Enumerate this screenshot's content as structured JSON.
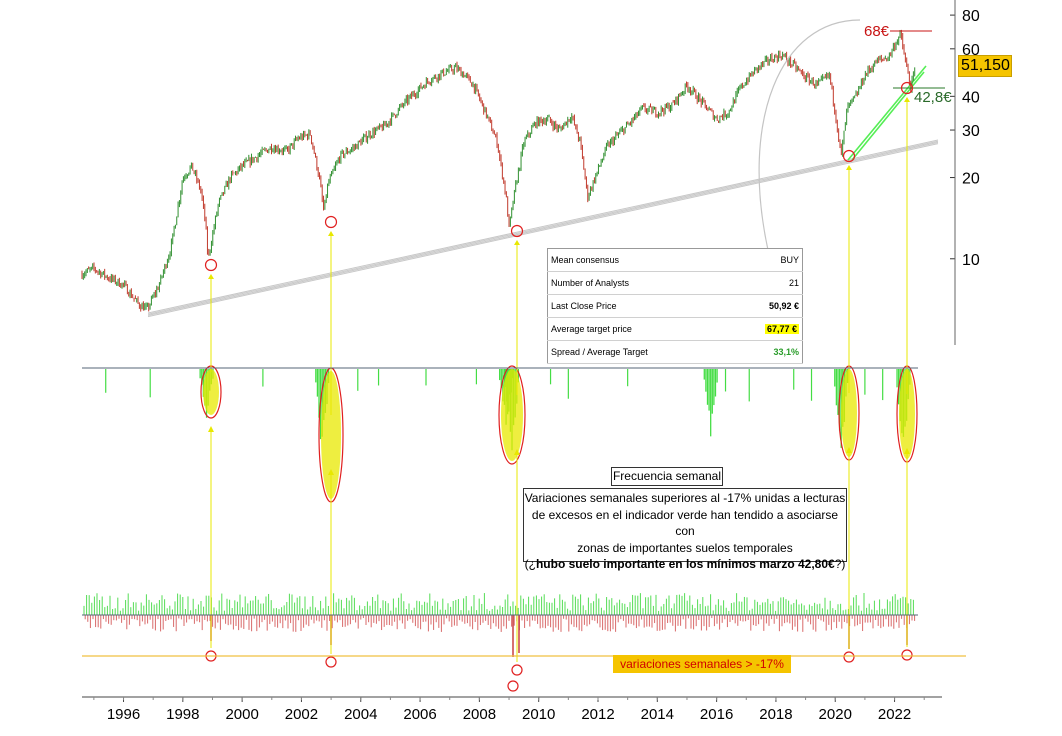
{
  "chart_data": [
    {
      "type": "line",
      "panel": "price",
      "scale": "log",
      "ylim": [
        5,
        85
      ],
      "yticks": [
        "10",
        "20",
        "30",
        "40",
        "60",
        "80"
      ],
      "xticks": [
        "1996",
        "1998",
        "2000",
        "2002",
        "2004",
        "2006",
        "2008",
        "2010",
        "2012",
        "2014",
        "2016",
        "2018",
        "2020",
        "2022"
      ],
      "series": [
        {
          "x": [
            1994.6,
            1995.0,
            1995.5,
            1996.0,
            1996.5,
            1996.8,
            1997.2,
            1997.6,
            1998.0,
            1998.3,
            1998.6,
            1998.75,
            1998.85,
            1999.2,
            1999.6,
            2000.0,
            2000.5,
            2001.0,
            2001.5,
            2001.9,
            2002.3,
            2002.6,
            2002.75,
            2002.9,
            2003.3,
            2003.8,
            2004.3,
            2004.8,
            2005.3,
            2005.8,
            2006.3,
            2006.8,
            2007.2,
            2007.5,
            2007.8,
            2008.2,
            2008.6,
            2008.9,
            2009.0,
            2009.2,
            2009.5,
            2009.9,
            2010.3,
            2010.7,
            2011.1,
            2011.4,
            2011.65,
            2011.9,
            2012.3,
            2012.7,
            2013.1,
            2013.5,
            2014.0,
            2014.5,
            2015.0,
            2015.5,
            2016.0,
            2016.4,
            2016.8,
            2017.3,
            2017.8,
            2018.2,
            2018.6,
            2019.0,
            2019.4,
            2019.8,
            2020.0,
            2020.2,
            2020.4,
            2020.7,
            2021.0,
            2021.4,
            2021.8,
            2022.0,
            2022.2,
            2022.35,
            2022.55,
            2022.7
          ],
          "values": [
            8.8,
            9.2,
            8.5,
            8.0,
            6.8,
            6.5,
            8.0,
            11,
            20,
            22,
            18,
            14,
            10,
            16,
            20,
            22,
            24,
            26,
            25,
            28,
            29,
            20,
            15,
            19,
            24,
            26,
            29,
            31,
            36,
            41,
            46,
            49,
            51,
            48,
            44,
            35,
            27,
            17,
            13,
            18,
            27,
            32,
            33,
            30,
            34,
            27,
            17,
            20,
            26,
            29,
            32,
            36,
            35,
            37,
            44,
            38,
            33,
            35,
            43,
            50,
            55,
            57,
            52,
            47,
            44,
            48,
            35,
            24,
            36,
            40,
            48,
            54,
            56,
            62,
            68,
            55,
            42.8,
            51.15
          ]
        }
      ]
    },
    {
      "type": "bar",
      "panel": "indicator",
      "x": [
        1998.8,
        2002.7,
        2008.9,
        2009.1,
        2015.8,
        2020.2,
        2022.3
      ],
      "values": [
        0.5,
        0.9,
        0.6,
        0.95,
        0.7,
        0.95,
        0.95
      ]
    },
    {
      "type": "bar",
      "panel": "weekly-variation",
      "threshold": -17,
      "threshold_label": "variaciones semanales > -17%"
    }
  ],
  "price": {
    "last": "51,150",
    "target_high": "68€",
    "support": "42,8€"
  },
  "consensus": {
    "rows": [
      {
        "label": "Mean consensus",
        "value": "BUY"
      },
      {
        "label": "Number of Analysts",
        "value": "21"
      },
      {
        "label": "Last Close Price",
        "value": "50,92 €"
      },
      {
        "label": "Average target price",
        "value": "67,77 €"
      },
      {
        "label": "Spread / Average Target",
        "value": "33,1%"
      }
    ]
  },
  "annotations": {
    "frequency": "Frecuencia semanal",
    "description_l1": "Variaciones semanales superiores al -17% unidas a lecturas",
    "description_l2": "de excesos en el indicador verde han tendido a asociarse con",
    "description_l3": "zonas de importantes suelos temporales",
    "description_l4_open": "(¿",
    "description_l4_bold": "hubo suelo importante en los mínimos marzo 42,80€",
    "description_l4_close": "?)",
    "threshold_label": "variaciones semanales > -17%"
  },
  "colors": {
    "up_candle": "#2f8f2f",
    "down_candle": "#c0392b",
    "indicator": "#44dd44",
    "highlight_fill": "#e8e800",
    "circle": "#e02020",
    "arrow": "#e8e800",
    "trendline": "#c8c8c8",
    "price_tag": "#f5c400"
  }
}
